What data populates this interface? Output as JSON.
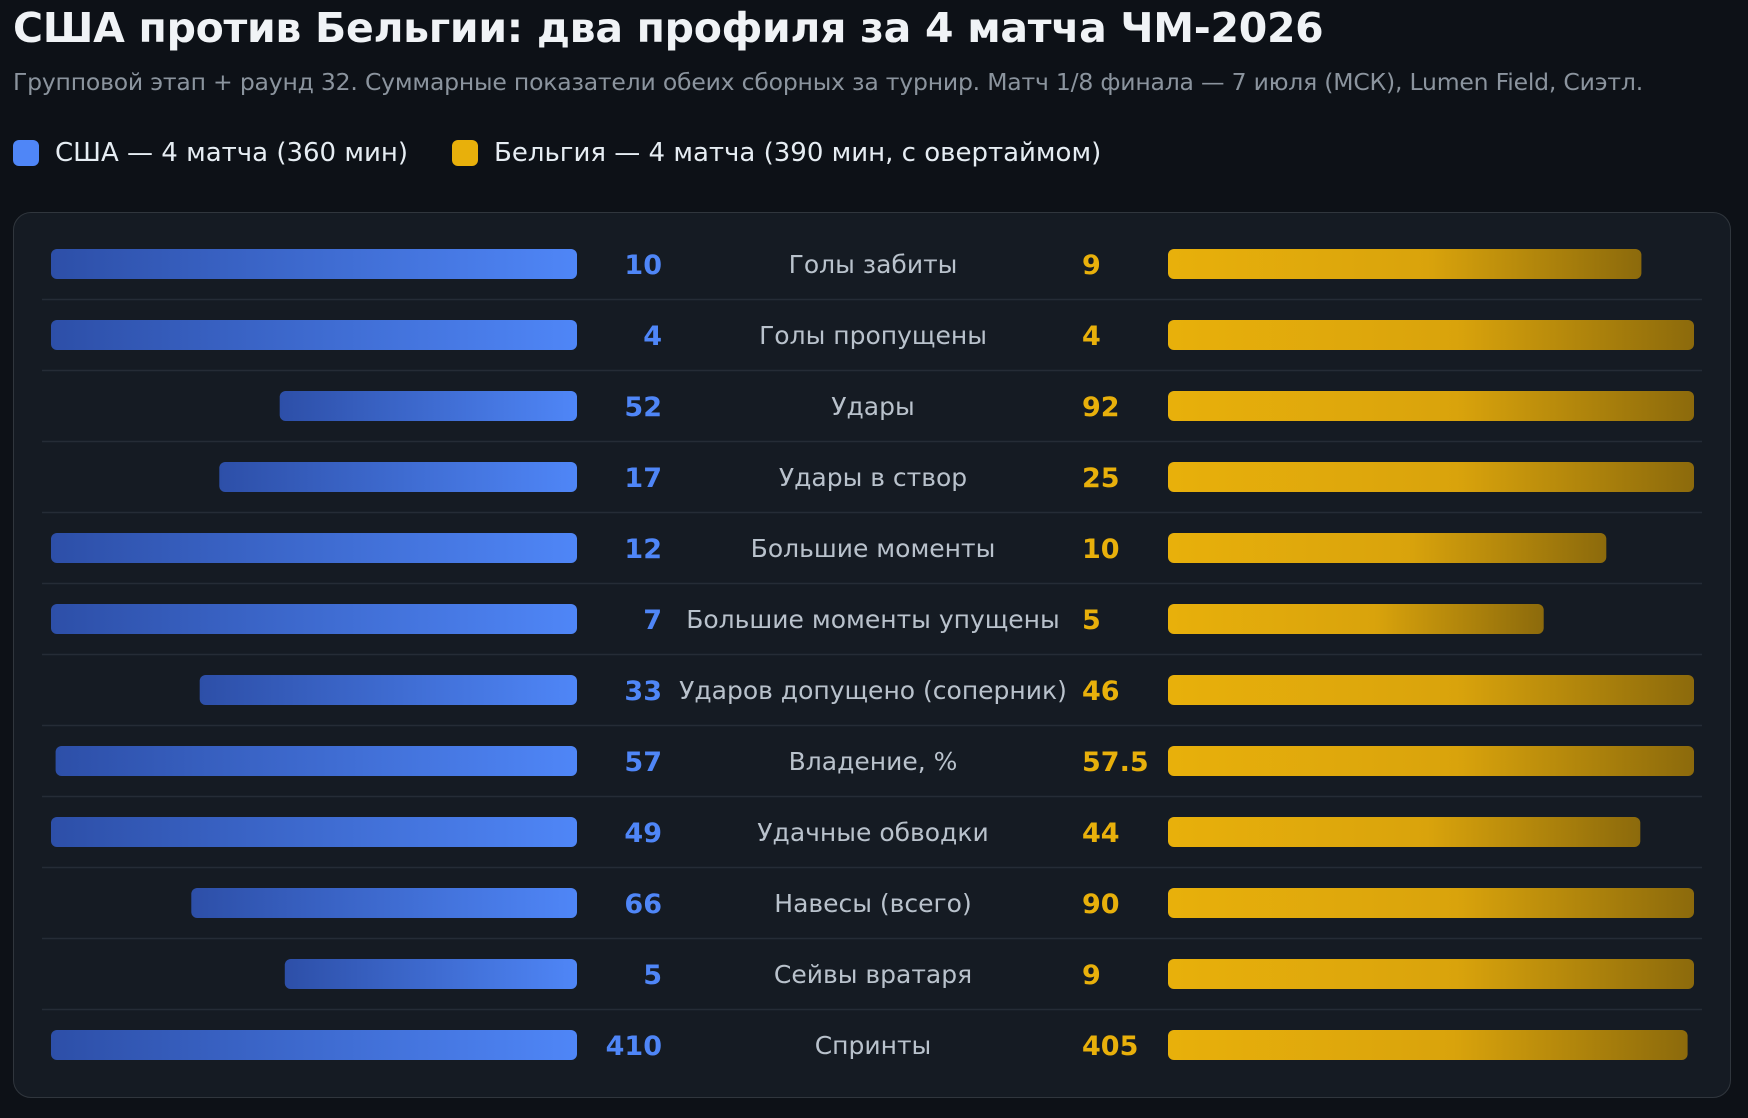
{
  "title": "США против Бельгии: два профиля за 4 матча ЧМ-2026",
  "subtitle": "Групповой этап + раунд 32. Суммарные показатели обеих сборных за турнир. Матч 1/8 финала — 7 июля (МСК), Lumen Field, Сиэтл.",
  "legend": {
    "usa": {
      "label": "США — 4 матча (360 мин)",
      "color": "#4f86f7"
    },
    "belgium": {
      "label": "Бельгия — 4 матча (390 мин, с овертаймом)",
      "color": "#e8b00b"
    }
  },
  "colors": {
    "background": "#0d1117",
    "panel": "#151b23",
    "usa_bar_start": "#2d4fa8",
    "usa_bar_end": "#4f86f7",
    "belgium_bar_start": "#e8b00b",
    "belgium_bar_end": "#8c6a0c"
  },
  "chart_data": {
    "type": "bar",
    "layout": "diverging-comparison",
    "series": [
      {
        "name": "США — 4 матча (360 мин)",
        "side": "left"
      },
      {
        "name": "Бельгия — 4 матча (390 мин, с овертаймом)",
        "side": "right"
      }
    ],
    "rows": [
      {
        "label": "Голы забиты",
        "usa": 10,
        "usa_label": "10",
        "belgium": 9,
        "belgium_label": "9"
      },
      {
        "label": "Голы пропущены",
        "usa": 4,
        "usa_label": "4",
        "belgium": 4,
        "belgium_label": "4"
      },
      {
        "label": "Удары",
        "usa": 52,
        "usa_label": "52",
        "belgium": 92,
        "belgium_label": "92"
      },
      {
        "label": "Удары в створ",
        "usa": 17,
        "usa_label": "17",
        "belgium": 25,
        "belgium_label": "25"
      },
      {
        "label": "Большие моменты",
        "usa": 12,
        "usa_label": "12",
        "belgium": 10,
        "belgium_label": "10"
      },
      {
        "label": "Большие моменты упущены",
        "usa": 7,
        "usa_label": "7",
        "belgium": 5,
        "belgium_label": "5"
      },
      {
        "label": "Ударов допущено (соперник)",
        "usa": 33,
        "usa_label": "33",
        "belgium": 46,
        "belgium_label": "46"
      },
      {
        "label": "Владение, %",
        "usa": 57,
        "usa_label": "57",
        "belgium": 57.5,
        "belgium_label": "57.5"
      },
      {
        "label": "Удачные обводки",
        "usa": 49,
        "usa_label": "49",
        "belgium": 44,
        "belgium_label": "44"
      },
      {
        "label": "Навесы (всего)",
        "usa": 66,
        "usa_label": "66",
        "belgium": 90,
        "belgium_label": "90"
      },
      {
        "label": "Сейвы вратаря",
        "usa": 5,
        "usa_label": "5",
        "belgium": 9,
        "belgium_label": "9"
      },
      {
        "label": "Спринты",
        "usa": 410,
        "usa_label": "410",
        "belgium": 405,
        "belgium_label": "405"
      }
    ],
    "scaling": "each row scaled to the larger of the two values",
    "grid": false,
    "legend_position": "top-left"
  }
}
